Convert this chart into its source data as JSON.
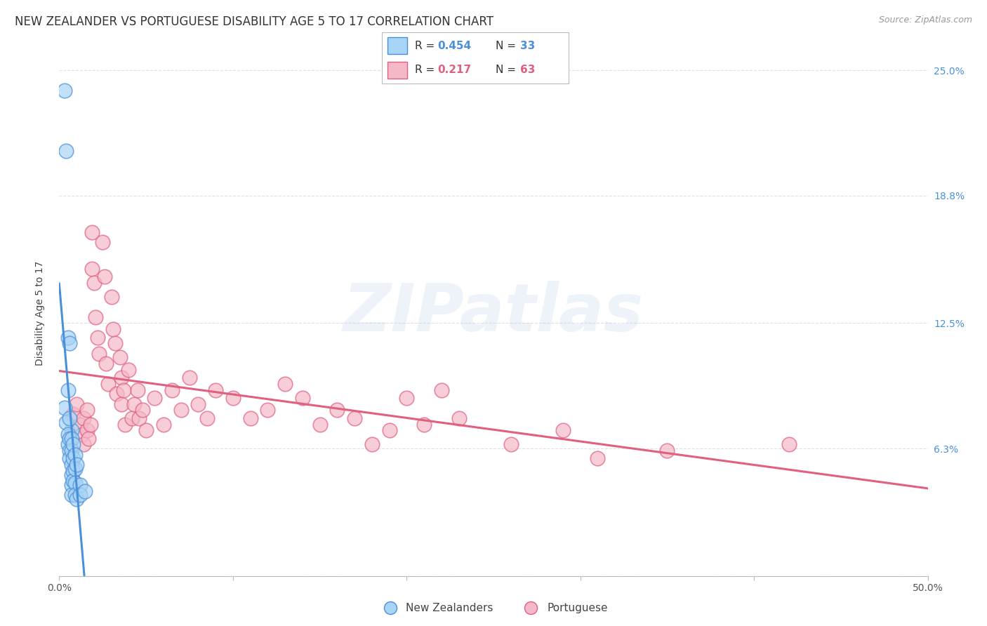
{
  "title": "NEW ZEALANDER VS PORTUGUESE DISABILITY AGE 5 TO 17 CORRELATION CHART",
  "source": "Source: ZipAtlas.com",
  "ylabel": "Disability Age 5 to 17",
  "xlim": [
    0.0,
    0.5
  ],
  "ylim": [
    0.0,
    0.26
  ],
  "watermark": "ZIPatlas",
  "nz_R": 0.454,
  "nz_N": 33,
  "pt_R": 0.217,
  "pt_N": 63,
  "nz_color": "#a8d4f5",
  "pt_color": "#f5b8c8",
  "nz_line_color": "#4a90d9",
  "pt_line_color": "#e06080",
  "nz_scatter": [
    [
      0.003,
      0.24
    ],
    [
      0.004,
      0.21
    ],
    [
      0.005,
      0.118
    ],
    [
      0.005,
      0.092
    ],
    [
      0.006,
      0.115
    ],
    [
      0.007,
      0.072
    ],
    [
      0.003,
      0.083
    ],
    [
      0.004,
      0.076
    ],
    [
      0.005,
      0.07
    ],
    [
      0.005,
      0.065
    ],
    [
      0.006,
      0.078
    ],
    [
      0.006,
      0.068
    ],
    [
      0.006,
      0.062
    ],
    [
      0.006,
      0.058
    ],
    [
      0.007,
      0.068
    ],
    [
      0.007,
      0.062
    ],
    [
      0.007,
      0.055
    ],
    [
      0.007,
      0.05
    ],
    [
      0.007,
      0.045
    ],
    [
      0.007,
      0.04
    ],
    [
      0.008,
      0.065
    ],
    [
      0.008,
      0.058
    ],
    [
      0.008,
      0.052
    ],
    [
      0.008,
      0.047
    ],
    [
      0.009,
      0.06
    ],
    [
      0.009,
      0.053
    ],
    [
      0.009,
      0.046
    ],
    [
      0.009,
      0.04
    ],
    [
      0.01,
      0.055
    ],
    [
      0.01,
      0.038
    ],
    [
      0.012,
      0.045
    ],
    [
      0.012,
      0.04
    ],
    [
      0.015,
      0.042
    ]
  ],
  "pt_scatter": [
    [
      0.008,
      0.08
    ],
    [
      0.01,
      0.085
    ],
    [
      0.012,
      0.075
    ],
    [
      0.013,
      0.07
    ],
    [
      0.014,
      0.078
    ],
    [
      0.014,
      0.065
    ],
    [
      0.016,
      0.082
    ],
    [
      0.016,
      0.072
    ],
    [
      0.017,
      0.068
    ],
    [
      0.018,
      0.075
    ],
    [
      0.019,
      0.17
    ],
    [
      0.019,
      0.152
    ],
    [
      0.02,
      0.145
    ],
    [
      0.021,
      0.128
    ],
    [
      0.022,
      0.118
    ],
    [
      0.023,
      0.11
    ],
    [
      0.025,
      0.165
    ],
    [
      0.026,
      0.148
    ],
    [
      0.027,
      0.105
    ],
    [
      0.028,
      0.095
    ],
    [
      0.03,
      0.138
    ],
    [
      0.031,
      0.122
    ],
    [
      0.032,
      0.115
    ],
    [
      0.033,
      0.09
    ],
    [
      0.035,
      0.108
    ],
    [
      0.036,
      0.098
    ],
    [
      0.036,
      0.085
    ],
    [
      0.037,
      0.092
    ],
    [
      0.038,
      0.075
    ],
    [
      0.04,
      0.102
    ],
    [
      0.042,
      0.078
    ],
    [
      0.043,
      0.085
    ],
    [
      0.045,
      0.092
    ],
    [
      0.046,
      0.078
    ],
    [
      0.048,
      0.082
    ],
    [
      0.05,
      0.072
    ],
    [
      0.055,
      0.088
    ],
    [
      0.06,
      0.075
    ],
    [
      0.065,
      0.092
    ],
    [
      0.07,
      0.082
    ],
    [
      0.075,
      0.098
    ],
    [
      0.08,
      0.085
    ],
    [
      0.085,
      0.078
    ],
    [
      0.09,
      0.092
    ],
    [
      0.1,
      0.088
    ],
    [
      0.11,
      0.078
    ],
    [
      0.12,
      0.082
    ],
    [
      0.13,
      0.095
    ],
    [
      0.14,
      0.088
    ],
    [
      0.15,
      0.075
    ],
    [
      0.16,
      0.082
    ],
    [
      0.17,
      0.078
    ],
    [
      0.18,
      0.065
    ],
    [
      0.19,
      0.072
    ],
    [
      0.2,
      0.088
    ],
    [
      0.21,
      0.075
    ],
    [
      0.22,
      0.092
    ],
    [
      0.23,
      0.078
    ],
    [
      0.26,
      0.065
    ],
    [
      0.29,
      0.072
    ],
    [
      0.31,
      0.058
    ],
    [
      0.35,
      0.062
    ],
    [
      0.42,
      0.065
    ]
  ],
  "background_color": "#ffffff",
  "grid_color": "#e0e0e0",
  "title_fontsize": 12,
  "axis_label_fontsize": 10,
  "tick_fontsize": 10
}
